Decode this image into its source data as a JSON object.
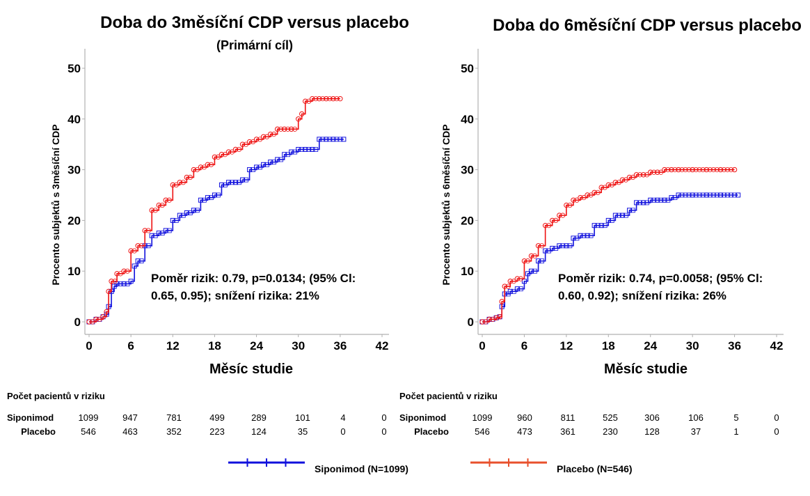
{
  "colors": {
    "siponimod": "#1010dd",
    "placebo": "#ee1111",
    "legend_placebo": "#e8502c"
  },
  "legend": {
    "siponimod_label": "Siponimod (N=1099)",
    "placebo_label": "Placebo (N=546)"
  },
  "chart_data": [
    {
      "type": "line",
      "subtype": "kaplan-meier",
      "title": "Doba do 3měsíční CDP versus placebo",
      "subtitle": "(Primární cíl)",
      "xlabel": "Měsíc studie",
      "ylabel": "Procento subjektů s 3měsíční CDP",
      "xlim": [
        0,
        42
      ],
      "ylim": [
        0,
        50
      ],
      "xticks": [
        "0",
        "6",
        "12",
        "18",
        "24",
        "30",
        "36",
        "42"
      ],
      "yticks": [
        "0",
        "10",
        "20",
        "30",
        "40",
        "50"
      ],
      "annotation": [
        "Poměr rizik: 0.79, p=0.0134; (95% Cl:",
        "0.65, 0.95); snížení rizika:  21%"
      ],
      "series": [
        {
          "name": "Siponimod",
          "x": [
            0,
            1,
            2,
            2.5,
            2.8,
            3.2,
            3.6,
            4,
            5,
            6,
            6.5,
            7,
            8,
            9,
            10,
            11,
            12,
            13,
            14,
            15,
            16,
            17,
            18,
            19,
            20,
            21,
            22,
            23,
            24,
            25,
            26,
            27,
            28,
            29,
            30,
            31,
            32,
            33,
            34,
            35,
            36.5
          ],
          "y": [
            0,
            0.5,
            1,
            1.5,
            3,
            6,
            7,
            7.5,
            7.5,
            8,
            11,
            12,
            15,
            17,
            17.5,
            18,
            20,
            21,
            21.5,
            22,
            24,
            24.5,
            25,
            27,
            27.5,
            27.5,
            28,
            30,
            30.5,
            31,
            31.5,
            32,
            33,
            33.5,
            34,
            34,
            34,
            36,
            36,
            36,
            36
          ]
        },
        {
          "name": "Placebo",
          "x": [
            0,
            1,
            2,
            2.5,
            2.8,
            3.2,
            4,
            5,
            6,
            7,
            8,
            9,
            10,
            11,
            12,
            13,
            14,
            15,
            16,
            17,
            18,
            19,
            20,
            21,
            22,
            23,
            24,
            25,
            26,
            27,
            28,
            29,
            30,
            30.5,
            31,
            32,
            33,
            34,
            35,
            36
          ],
          "y": [
            0,
            0.5,
            1,
            2,
            6,
            8,
            9.5,
            10,
            14,
            15,
            18,
            22,
            23,
            24,
            27,
            27.5,
            28.5,
            30,
            30.5,
            31,
            32.5,
            33,
            33.5,
            34,
            35,
            35.5,
            36,
            36.5,
            37,
            38,
            38,
            38,
            40,
            41,
            43.5,
            44,
            44,
            44,
            44,
            44
          ]
        }
      ],
      "risk_table": {
        "header": "Počet pacientů v riziku",
        "rows": [
          {
            "name": "Siponimod",
            "values": [
              "1099",
              "947",
              "781",
              "499",
              "289",
              "101",
              "4",
              "0"
            ]
          },
          {
            "name": "Placebo",
            "values": [
              "546",
              "463",
              "352",
              "223",
              "124",
              "35",
              "0",
              "0"
            ]
          }
        ]
      }
    },
    {
      "type": "line",
      "subtype": "kaplan-meier",
      "title": "Doba do 6měsíční CDP versus placebo",
      "xlabel": "Měsíc studie",
      "ylabel": "Procento subjektů s 6měsíční CDP",
      "xlim": [
        0,
        42
      ],
      "ylim": [
        0,
        50
      ],
      "xticks": [
        "0",
        "6",
        "12",
        "18",
        "24",
        "30",
        "36",
        "42"
      ],
      "yticks": [
        "0",
        "10",
        "20",
        "30",
        "40",
        "50"
      ],
      "annotation": [
        "Poměr rizik: 0.74, p=0.0058; (95% Cl:",
        "0.60, 0.92); snížení rizika:  26%"
      ],
      "series": [
        {
          "name": "Siponimod",
          "x": [
            0,
            1,
            2,
            2.5,
            2.8,
            3.2,
            4,
            5,
            6,
            6.5,
            7,
            8,
            9,
            10,
            11,
            12,
            13,
            14,
            15,
            16,
            17,
            18,
            19,
            20,
            21,
            22,
            23,
            24,
            25,
            26,
            27,
            28,
            30,
            32,
            34,
            36.5
          ],
          "y": [
            0,
            0.5,
            0.8,
            1,
            3,
            5.5,
            6,
            6.5,
            8,
            9.5,
            10,
            12,
            14,
            14.5,
            15,
            15,
            16.5,
            17,
            17,
            19,
            19,
            20,
            21,
            21,
            22,
            23.5,
            23.5,
            24,
            24,
            24,
            24.5,
            25,
            25,
            25,
            25,
            25
          ]
        },
        {
          "name": "Placebo",
          "x": [
            0,
            1,
            2,
            2.5,
            2.8,
            3.2,
            4,
            5,
            6,
            7,
            8,
            9,
            10,
            11,
            12,
            13,
            14,
            15,
            16,
            17,
            18,
            19,
            20,
            21,
            22,
            23,
            24,
            25,
            26,
            27,
            28,
            30,
            32,
            34,
            36
          ],
          "y": [
            0,
            0.5,
            0.8,
            1,
            4,
            7,
            8,
            8.5,
            12,
            13,
            15,
            19,
            20,
            21,
            23,
            24,
            24.5,
            25,
            25.5,
            26.5,
            27,
            27.5,
            28,
            28.5,
            29,
            29,
            29.5,
            29.5,
            30,
            30,
            30,
            30,
            30,
            30,
            30
          ]
        }
      ],
      "risk_table": {
        "header": "Počet pacientů v riziku",
        "rows": [
          {
            "name": "Siponimod",
            "values": [
              "1099",
              "960",
              "811",
              "525",
              "306",
              "106",
              "5",
              "0"
            ]
          },
          {
            "name": "Placebo",
            "values": [
              "546",
              "473",
              "361",
              "230",
              "128",
              "37",
              "1",
              "0"
            ]
          }
        ]
      }
    }
  ]
}
